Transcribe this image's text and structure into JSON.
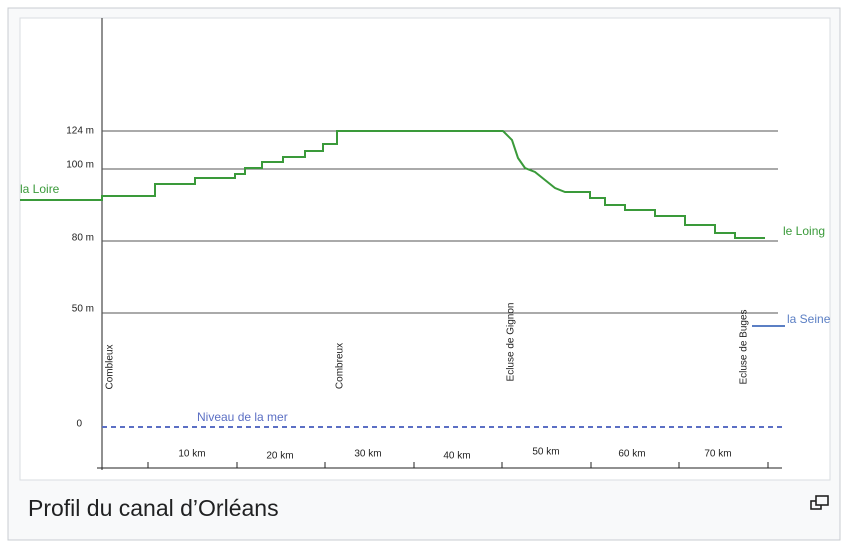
{
  "figure": {
    "place_labels": {
      "start": "la Loire",
      "end": "le Loing",
      "seine": "la Seine"
    },
    "y_labels": [
      "124 m",
      "100 m",
      "80 m",
      "50 m",
      "0"
    ],
    "x_labels": [
      "10 km",
      "20 km",
      "30 km",
      "40 km",
      "50 km",
      "60 km",
      "70 km"
    ],
    "sea_level": "Niveau de la mer",
    "stations": [
      "Combleux",
      "Combreux",
      "Ecluse de Gignon",
      "Ecluse de Buges"
    ]
  },
  "caption": "Profil du canal d’Orléans"
}
